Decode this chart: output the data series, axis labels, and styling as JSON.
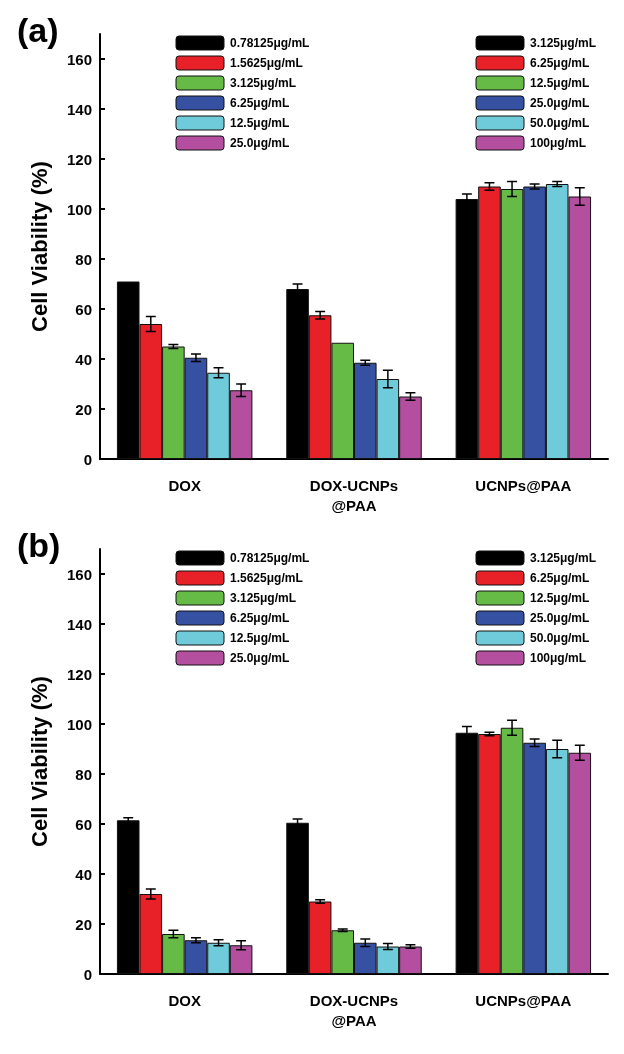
{
  "chart_data": [
    {
      "type": "bar",
      "title": "(a)",
      "ylabel": "Cell Viability (%)",
      "categories": [
        "DOX",
        "DOX-UCNPs\n@PAA",
        "UCNPs@PAA"
      ],
      "ylim": [
        0,
        170
      ],
      "yticks": [
        0,
        20,
        40,
        60,
        80,
        100,
        120,
        140,
        160
      ],
      "legend": "top",
      "grid": false,
      "series": [
        {
          "name": "0.78125μg/mL",
          "color": "#000000",
          "values": [
            71,
            68,
            null
          ],
          "errors": [
            null,
            2,
            null
          ]
        },
        {
          "name": "1.5625μg/mL",
          "color": "#e82027",
          "values": [
            54,
            57.5,
            null
          ],
          "errors": [
            3,
            1.5,
            null
          ]
        },
        {
          "name": "3.125μg/mL",
          "color": "#66bb46",
          "values": [
            45,
            46.5,
            null
          ],
          "errors": [
            0.8,
            null,
            null
          ]
        },
        {
          "name": "6.25μg/mL",
          "color": "#3650a2",
          "values": [
            40.5,
            38.5,
            null
          ],
          "errors": [
            1.5,
            1,
            null
          ]
        },
        {
          "name": "12.5μg/mL",
          "color": "#6fcbd9",
          "values": [
            34.5,
            32,
            null
          ],
          "errors": [
            2,
            3.5,
            null
          ]
        },
        {
          "name": "25.0μg/mL",
          "color": "#b34f9e",
          "values": [
            27.5,
            25,
            null
          ],
          "errors": [
            2.5,
            1.5,
            null
          ]
        },
        {
          "name": "3.125μg/mL",
          "color": "#000000",
          "values": [
            null,
            null,
            104
          ],
          "errors": [
            null,
            null,
            2
          ]
        },
        {
          "name": "6.25μg/mL",
          "color": "#e82027",
          "values": [
            null,
            null,
            109
          ],
          "errors": [
            null,
            null,
            1.5
          ]
        },
        {
          "name": "12.5μg/mL",
          "color": "#66bb46",
          "values": [
            null,
            null,
            108
          ],
          "errors": [
            null,
            null,
            3
          ]
        },
        {
          "name": "25.0μg/mL",
          "color": "#3650a2",
          "values": [
            null,
            null,
            109
          ],
          "errors": [
            null,
            null,
            1
          ]
        },
        {
          "name": "50.0μg/mL",
          "color": "#6fcbd9",
          "values": [
            null,
            null,
            110
          ],
          "errors": [
            null,
            null,
            1
          ]
        },
        {
          "name": "100μg/mL",
          "color": "#b34f9e",
          "values": [
            null,
            null,
            105
          ],
          "errors": [
            null,
            null,
            3.5
          ]
        }
      ]
    },
    {
      "type": "bar",
      "title": "(b)",
      "ylabel": "Cell Viability (%)",
      "categories": [
        "DOX",
        "DOX-UCNPs\n@PAA",
        "UCNPs@PAA"
      ],
      "ylim": [
        0,
        170
      ],
      "yticks": [
        0,
        20,
        40,
        60,
        80,
        100,
        120,
        140,
        160
      ],
      "legend": "top",
      "grid": false,
      "series": [
        {
          "name": "0.78125μg/mL",
          "color": "#000000",
          "values": [
            61.5,
            60.5,
            null
          ],
          "errors": [
            1,
            1.5,
            null
          ]
        },
        {
          "name": "1.5625μg/mL",
          "color": "#e82027",
          "values": [
            32,
            29,
            null
          ],
          "errors": [
            2,
            0.7,
            null
          ]
        },
        {
          "name": "3.125μg/mL",
          "color": "#66bb46",
          "values": [
            16,
            17.5,
            null
          ],
          "errors": [
            1.5,
            0.5,
            null
          ]
        },
        {
          "name": "6.25μg/mL",
          "color": "#3650a2",
          "values": [
            13.5,
            12.5,
            null
          ],
          "errors": [
            1,
            1.5,
            null
          ]
        },
        {
          "name": "12.5μg/mL",
          "color": "#6fcbd9",
          "values": [
            12.5,
            11,
            null
          ],
          "errors": [
            1.2,
            1.2,
            null
          ]
        },
        {
          "name": "25.0μg/mL",
          "color": "#b34f9e",
          "values": [
            11.5,
            11,
            null
          ],
          "errors": [
            1.8,
            0.7,
            null
          ]
        },
        {
          "name": "3.125μg/mL",
          "color": "#000000",
          "values": [
            null,
            null,
            96.5
          ],
          "errors": [
            null,
            null,
            2.5
          ]
        },
        {
          "name": "6.25μg/mL",
          "color": "#e82027",
          "values": [
            null,
            null,
            96
          ],
          "errors": [
            null,
            null,
            0.7
          ]
        },
        {
          "name": "12.5μg/mL",
          "color": "#66bb46",
          "values": [
            null,
            null,
            98.5
          ],
          "errors": [
            null,
            null,
            3
          ]
        },
        {
          "name": "25.0μg/mL",
          "color": "#3650a2",
          "values": [
            null,
            null,
            92.5
          ],
          "errors": [
            null,
            null,
            1.5
          ]
        },
        {
          "name": "50.0μg/mL",
          "color": "#6fcbd9",
          "values": [
            null,
            null,
            90
          ],
          "errors": [
            null,
            null,
            3.5
          ]
        },
        {
          "name": "100μg/mL",
          "color": "#b34f9e",
          "values": [
            null,
            null,
            88.5
          ],
          "errors": [
            null,
            null,
            3
          ]
        }
      ]
    }
  ]
}
